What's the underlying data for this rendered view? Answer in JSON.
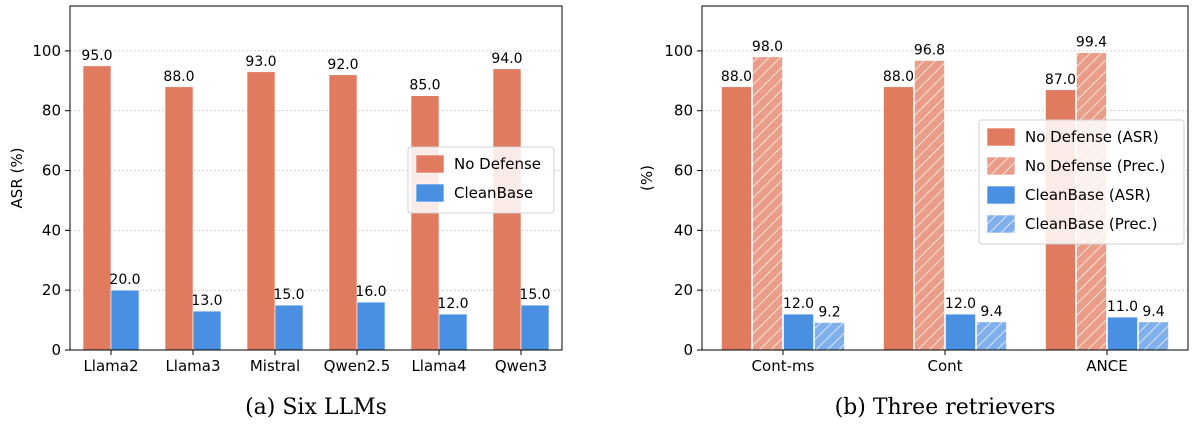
{
  "colors": {
    "no_defense": "#e07b5f",
    "cleanbase": "#4a90e2",
    "no_defense_hatch": "#ea9d88",
    "cleanbase_hatch": "#7fb0ec"
  },
  "chart_data": [
    {
      "type": "bar",
      "caption": "(a) Six LLMs",
      "ylabel": "ASR (%)",
      "ylim": [
        0,
        115
      ],
      "yticks": [
        0,
        20,
        40,
        60,
        80,
        100
      ],
      "grid": "horizontal-dotted",
      "legend_position": "center-right",
      "categories": [
        "Llama2",
        "Llama3",
        "Mistral",
        "Qwen2.5",
        "Llama4",
        "Qwen3"
      ],
      "series": [
        {
          "name": "No Defense",
          "values": [
            95.0,
            88.0,
            93.0,
            92.0,
            85.0,
            94.0
          ],
          "labels": [
            "95.0",
            "88.0",
            "93.0",
            "92.0",
            "85.0",
            "94.0"
          ],
          "color_key": "no_defense",
          "hatch": false
        },
        {
          "name": "CleanBase",
          "values": [
            20.0,
            13.0,
            15.0,
            16.0,
            12.0,
            15.0
          ],
          "labels": [
            "20.0",
            "13.0",
            "15.0",
            "16.0",
            "12.0",
            "15.0"
          ],
          "color_key": "cleanbase",
          "hatch": false
        }
      ]
    },
    {
      "type": "bar",
      "caption": "(b) Three retrievers",
      "ylabel": "(%)",
      "ylim": [
        0,
        115
      ],
      "yticks": [
        0,
        20,
        40,
        60,
        80,
        100
      ],
      "grid": "horizontal-dotted",
      "legend_position": "center-right",
      "categories": [
        "Cont-ms",
        "Cont",
        "ANCE"
      ],
      "series": [
        {
          "name": "No Defense (ASR)",
          "values": [
            88.0,
            88.0,
            87.0
          ],
          "labels": [
            "88.0",
            "88.0",
            "87.0"
          ],
          "color_key": "no_defense",
          "hatch": false
        },
        {
          "name": "No Defense (Prec.)",
          "values": [
            98.0,
            96.8,
            99.4
          ],
          "labels": [
            "98.0",
            "96.8",
            "99.4"
          ],
          "color_key": "no_defense_hatch",
          "hatch": true
        },
        {
          "name": "CleanBase (ASR)",
          "values": [
            12.0,
            12.0,
            11.0
          ],
          "labels": [
            "12.0",
            "12.0",
            "11.0"
          ],
          "color_key": "cleanbase",
          "hatch": false
        },
        {
          "name": "CleanBase (Prec.)",
          "values": [
            9.2,
            9.4,
            9.4
          ],
          "labels": [
            "9.2",
            "9.4",
            "9.4"
          ],
          "color_key": "cleanbase_hatch",
          "hatch": true
        }
      ]
    }
  ]
}
